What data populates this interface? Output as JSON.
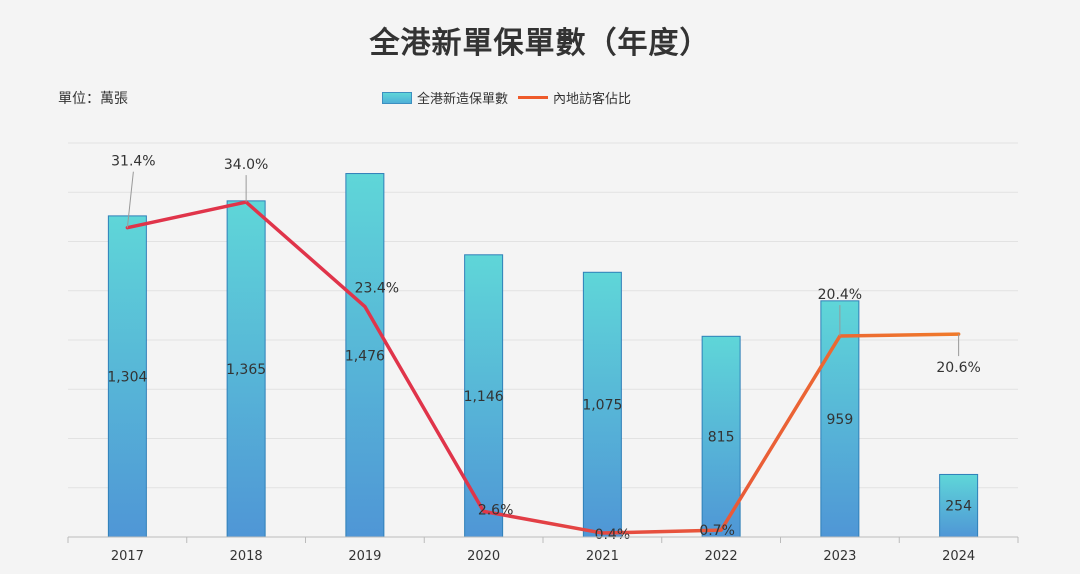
{
  "title": "全港新單保單數（年度）",
  "unit_label": "單位：萬張",
  "legend": {
    "bar_series": "全港新造保單數",
    "line_series": "內地訪客佔比"
  },
  "colors": {
    "bar_top": "#5fd6d8",
    "bar_bottom": "#4f96d6",
    "bar_border": "#2f7fb8",
    "line_start": "#e0344a",
    "line_end": "#f07a2a",
    "grid": "#e2e2e2",
    "axis": "#bbbbbb"
  },
  "chart_data": {
    "type": "bar",
    "categories": [
      "2017",
      "2018",
      "2019",
      "2020",
      "2021",
      "2022",
      "2023",
      "2024"
    ],
    "series": [
      {
        "name": "全港新造保單數",
        "type": "bar",
        "values": [
          1304,
          1365,
          1476,
          1146,
          1075,
          815,
          959,
          254
        ],
        "labels": [
          "1,304",
          "1,365",
          "1,476",
          "1,146",
          "1,075",
          "815",
          "959",
          "254"
        ]
      },
      {
        "name": "內地訪客佔比",
        "type": "line",
        "values": [
          31.4,
          34.0,
          23.4,
          2.6,
          0.4,
          0.7,
          20.4,
          20.6
        ],
        "labels": [
          "31.4%",
          "34.0%",
          "23.4%",
          "2.6%",
          "0.4%",
          "0.7%",
          "20.4%",
          "20.6%"
        ]
      }
    ],
    "ylim_bar": [
      0,
      1600
    ],
    "ylim_line": [
      0,
      40
    ],
    "grid": true,
    "legend_position": "top-center"
  }
}
